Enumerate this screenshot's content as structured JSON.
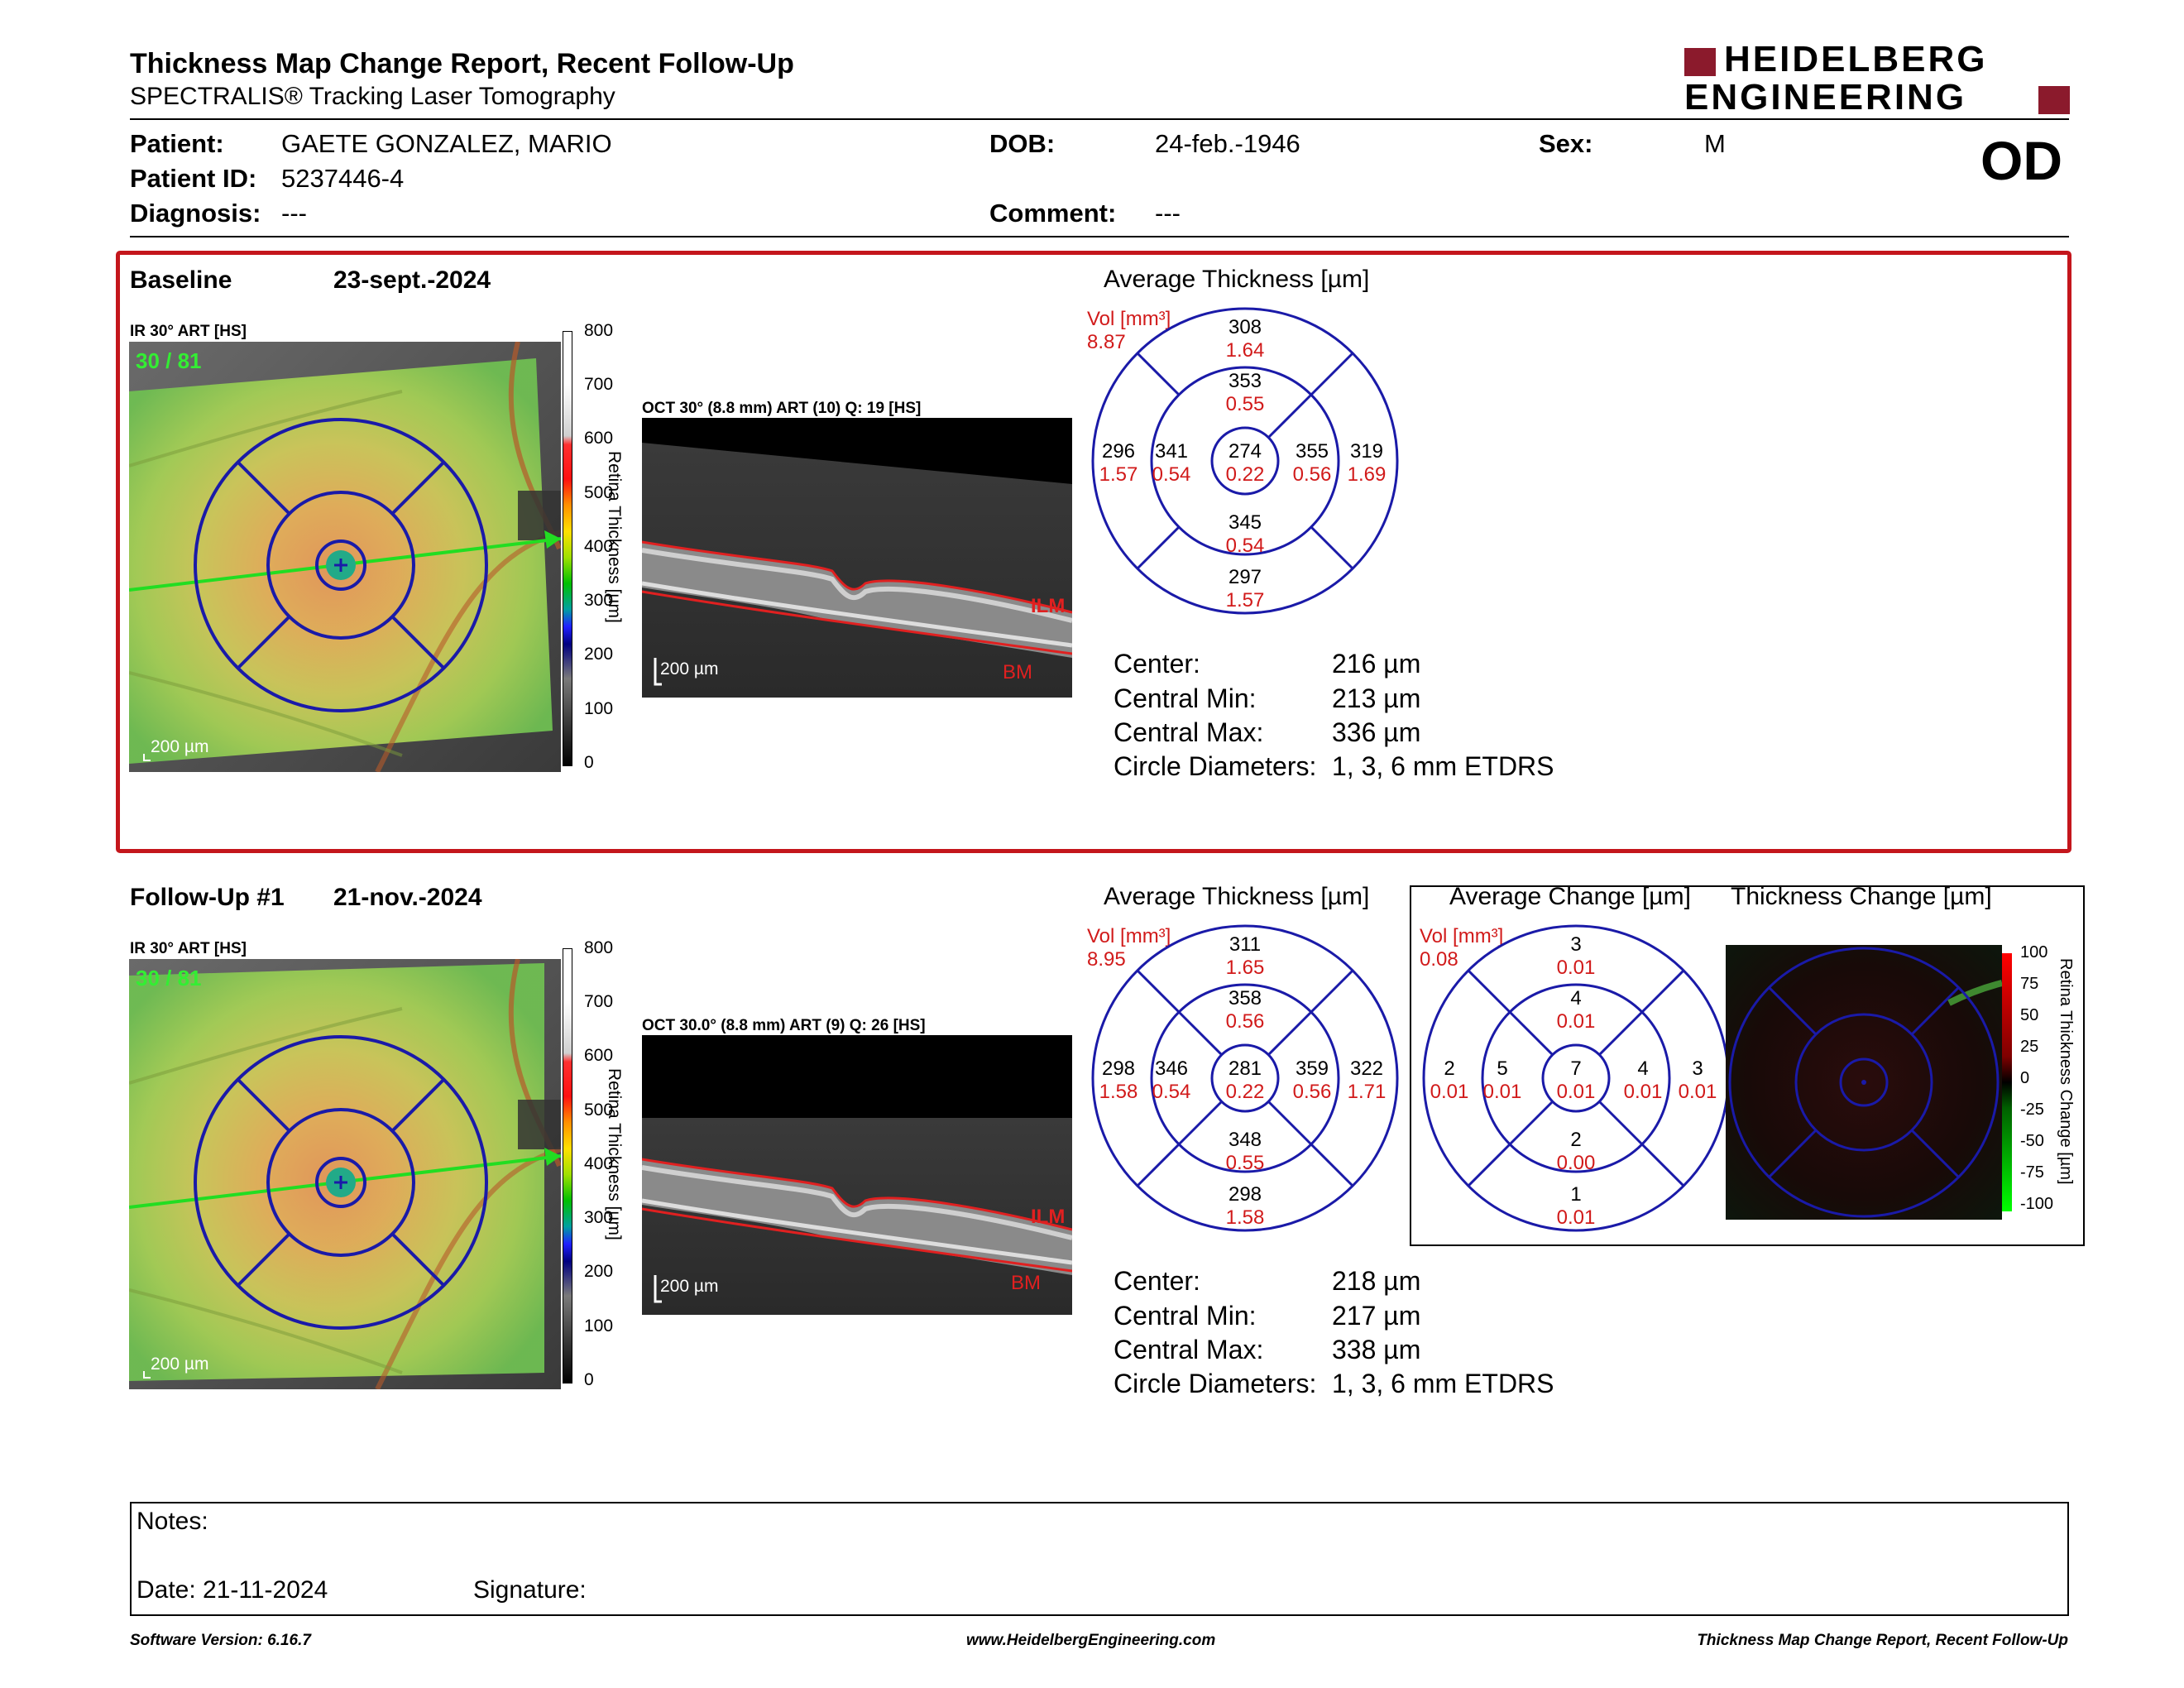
{
  "report": {
    "title": "Thickness Map Change Report, Recent Follow-Up",
    "subtitle": "SPECTRALIS® Tracking Laser Tomography",
    "logo_line1": "HEIDELBERG",
    "logo_line2": "ENGINEERING",
    "eye": "OD"
  },
  "patient": {
    "patient_label": "Patient:",
    "patient_value": "GAETE GONZALEZ, MARIO",
    "id_label": "Patient ID:",
    "id_value": "5237446-4",
    "diagnosis_label": "Diagnosis:",
    "diagnosis_value": "---",
    "dob_label": "DOB:",
    "dob_value": "24-feb.-1946",
    "comment_label": "Comment:",
    "comment_value": "---",
    "sex_label": "Sex:",
    "sex_value": "M"
  },
  "scale_ticks": [
    "800",
    "700",
    "600",
    "500",
    "400",
    "300",
    "200",
    "100",
    "0"
  ],
  "scale_axis_label": "Retina Thickness [µm]",
  "change_ticks": [
    "100",
    "75",
    "50",
    "25",
    "0",
    "-25",
    "-50",
    "-75",
    "-100"
  ],
  "change_axis_label": "Retina Thickness Change [µm]",
  "baseline": {
    "label": "Baseline",
    "date": "23-sept.-2024",
    "ir_label": "IR 30° ART [HS]",
    "ir_overlay": "30 / 81",
    "scale_bar": "200 µm",
    "oct_label": "OCT 30° (8.8 mm) ART (10) Q: 19 [HS]",
    "oct_scale": "200 µm",
    "ilm": "ILM",
    "bm": "BM",
    "avg_title": "Average Thickness [µm]",
    "vol_label": "Vol [mm³]",
    "vol_value": "8.87",
    "sectors": {
      "outer_sup": {
        "t": "308",
        "v": "1.64"
      },
      "inner_sup": {
        "t": "353",
        "v": "0.55"
      },
      "outer_temp": {
        "t": "296",
        "v": "1.57"
      },
      "inner_temp": {
        "t": "341",
        "v": "0.54"
      },
      "center": {
        "t": "274",
        "v": "0.22"
      },
      "inner_nasal": {
        "t": "355",
        "v": "0.56"
      },
      "outer_nasal": {
        "t": "319",
        "v": "1.69"
      },
      "inner_inf": {
        "t": "345",
        "v": "0.54"
      },
      "outer_inf": {
        "t": "297",
        "v": "1.57"
      }
    },
    "stats": [
      {
        "k": "Center:",
        "v": "216 µm"
      },
      {
        "k": "Central Min:",
        "v": "213 µm"
      },
      {
        "k": "Central Max:",
        "v": "336 µm"
      },
      {
        "k": "Circle Diameters:",
        "v": "1, 3, 6 mm ETDRS"
      }
    ]
  },
  "followup": {
    "label": "Follow-Up #1",
    "date": "21-nov.-2024",
    "ir_label": "IR 30° ART [HS]",
    "ir_overlay": "30 / 81",
    "scale_bar": "200 µm",
    "oct_label": "OCT 30.0° (8.8 mm) ART (9) Q: 26 [HS]",
    "oct_scale": "200 µm",
    "ilm": "ILM",
    "bm": "BM",
    "avg_title": "Average Thickness [µm]",
    "vol_label": "Vol [mm³]",
    "vol_value": "8.95",
    "sectors": {
      "outer_sup": {
        "t": "311",
        "v": "1.65"
      },
      "inner_sup": {
        "t": "358",
        "v": "0.56"
      },
      "outer_temp": {
        "t": "298",
        "v": "1.58"
      },
      "inner_temp": {
        "t": "346",
        "v": "0.54"
      },
      "center": {
        "t": "281",
        "v": "0.22"
      },
      "inner_nasal": {
        "t": "359",
        "v": "0.56"
      },
      "outer_nasal": {
        "t": "322",
        "v": "1.71"
      },
      "inner_inf": {
        "t": "348",
        "v": "0.55"
      },
      "outer_inf": {
        "t": "298",
        "v": "1.58"
      }
    },
    "stats": [
      {
        "k": "Center:",
        "v": "218 µm"
      },
      {
        "k": "Central Min:",
        "v": "217 µm"
      },
      {
        "k": "Central Max:",
        "v": "338 µm"
      },
      {
        "k": "Circle Diameters:",
        "v": "1, 3, 6 mm ETDRS"
      }
    ]
  },
  "change": {
    "avg_title": "Average Change [µm]",
    "map_title": "Thickness Change [µm]",
    "vol_label": "Vol [mm³]",
    "vol_value": "0.08",
    "sectors": {
      "outer_sup": {
        "t": "3",
        "v": "0.01"
      },
      "inner_sup": {
        "t": "4",
        "v": "0.01"
      },
      "outer_temp": {
        "t": "2",
        "v": "0.01"
      },
      "inner_temp": {
        "t": "5",
        "v": "0.01"
      },
      "center": {
        "t": "7",
        "v": "0.01"
      },
      "inner_nasal": {
        "t": "4",
        "v": "0.01"
      },
      "outer_nasal": {
        "t": "3",
        "v": "0.01"
      },
      "inner_inf": {
        "t": "2",
        "v": "0.00"
      },
      "outer_inf": {
        "t": "1",
        "v": "0.01"
      }
    }
  },
  "notes": {
    "notes_label": "Notes:",
    "date_label": "Date: 21-11-2024",
    "signature_label": "Signature:"
  },
  "footer": {
    "software": "Software Version: 6.16.7",
    "website": "www.HeidelbergEngineering.com",
    "report_name": "Thickness Map Change Report, Recent Follow-Up"
  },
  "colors": {
    "brand": "#8b1a2c",
    "frame_red": "#c4161c",
    "grid_blue": "#1a1aa8",
    "value_red": "#d11a1a"
  }
}
